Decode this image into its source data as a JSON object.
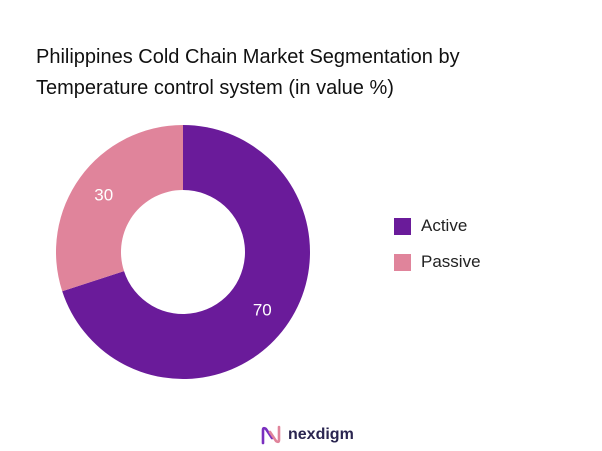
{
  "chart_data": {
    "type": "donut",
    "title_lines": [
      "Philippines Cold Chain Market Segmentation by",
      "Temperature control system (in value %)"
    ],
    "categories": [
      "Active",
      "Passive"
    ],
    "values": [
      70,
      30
    ],
    "data_labels": [
      "70",
      "30"
    ],
    "colors": [
      "#6a1b9a",
      "#e0849b"
    ],
    "label_color": "#ffffff",
    "legend_position": "right",
    "start_angle": "top, clockwise"
  },
  "brand": {
    "name": "nexdigm",
    "icon": "nexdigm-logo-icon",
    "colors": [
      "#7a2fbf",
      "#e0849b"
    ]
  }
}
